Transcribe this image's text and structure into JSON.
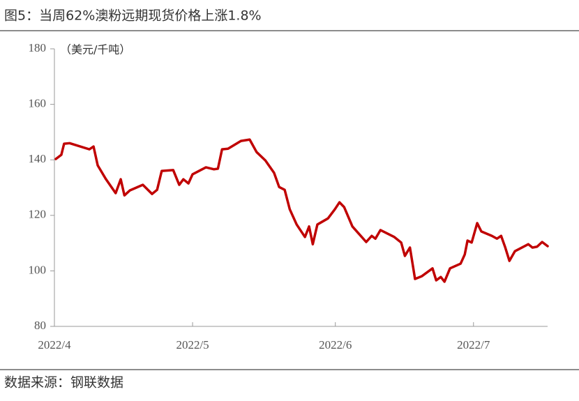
{
  "chart_data": {
    "type": "line",
    "title": "图5：当周62%澳粉远期现货价格上涨1.8%",
    "y_label": "（美元/千吨）",
    "source": "数据来源：钢联数据",
    "x": [
      0.3,
      1.5,
      2.1,
      3.3,
      7.6,
      8.5,
      9.4,
      11.2,
      13.3,
      14.4,
      15.2,
      16.4,
      19.2,
      21.2,
      22.3,
      23.3,
      25.8,
      27.1,
      28,
      29.1,
      30,
      32.9,
      34.6,
      35.5,
      36.4,
      37.7,
      40.5,
      42.4,
      43.9,
      45.8,
      47.7,
      48.8,
      50,
      51.1,
      52.6,
      54.4,
      55.3,
      56.1,
      57.1,
      59.4,
      60.9,
      61.9,
      62.9,
      64.7,
      67.7,
      68.9,
      69.7,
      70.8,
      73.8,
      75.3,
      76.1,
      77.2,
      78.3,
      79.8,
      82.1,
      82.9,
      83.9,
      84.7,
      85.9,
      88.2,
      89.1,
      89.7,
      90.6,
      91.8,
      92.7,
      95,
      96.1,
      97,
      97.9,
      98.8,
      100,
      102.9,
      103.8,
      104.8,
      105.9,
      107.1
    ],
    "series": [
      {
        "name": "62%澳粉远期现货价格",
        "color": "#c00000",
        "values": [
          140.3,
          141.8,
          145.8,
          146,
          143.8,
          144.8,
          138,
          133,
          128,
          133,
          127.2,
          129,
          131,
          127.7,
          129.2,
          136,
          136.3,
          131,
          133,
          131.5,
          134.8,
          137.3,
          136.6,
          136.8,
          143.8,
          144,
          146.8,
          147.3,
          142.8,
          139.8,
          135.3,
          130.2,
          129.2,
          122.2,
          116.7,
          112.2,
          116,
          109.6,
          116.7,
          118.9,
          122.2,
          124.7,
          123,
          116,
          110.4,
          112.6,
          111.6,
          114.7,
          112.2,
          110.2,
          105.4,
          108.4,
          97.1,
          98.1,
          100.9,
          96.6,
          97.8,
          96.1,
          100.9,
          102.6,
          105.9,
          110.9,
          110.2,
          117.2,
          114.2,
          112.6,
          111.6,
          112.6,
          108.4,
          103.6,
          107.1,
          109.6,
          108.4,
          108.7,
          110.4,
          108.9
        ]
      }
    ],
    "xlim": [
      0,
      108
    ],
    "xticks": [
      {
        "value": 0,
        "label": "2022/4"
      },
      {
        "value": 30,
        "label": "2022/5"
      },
      {
        "value": 61,
        "label": "2022/6"
      },
      {
        "value": 91,
        "label": "2022/7"
      }
    ],
    "ylim": [
      80,
      180
    ],
    "yticks": [
      80,
      100,
      120,
      140,
      160,
      180
    ]
  }
}
